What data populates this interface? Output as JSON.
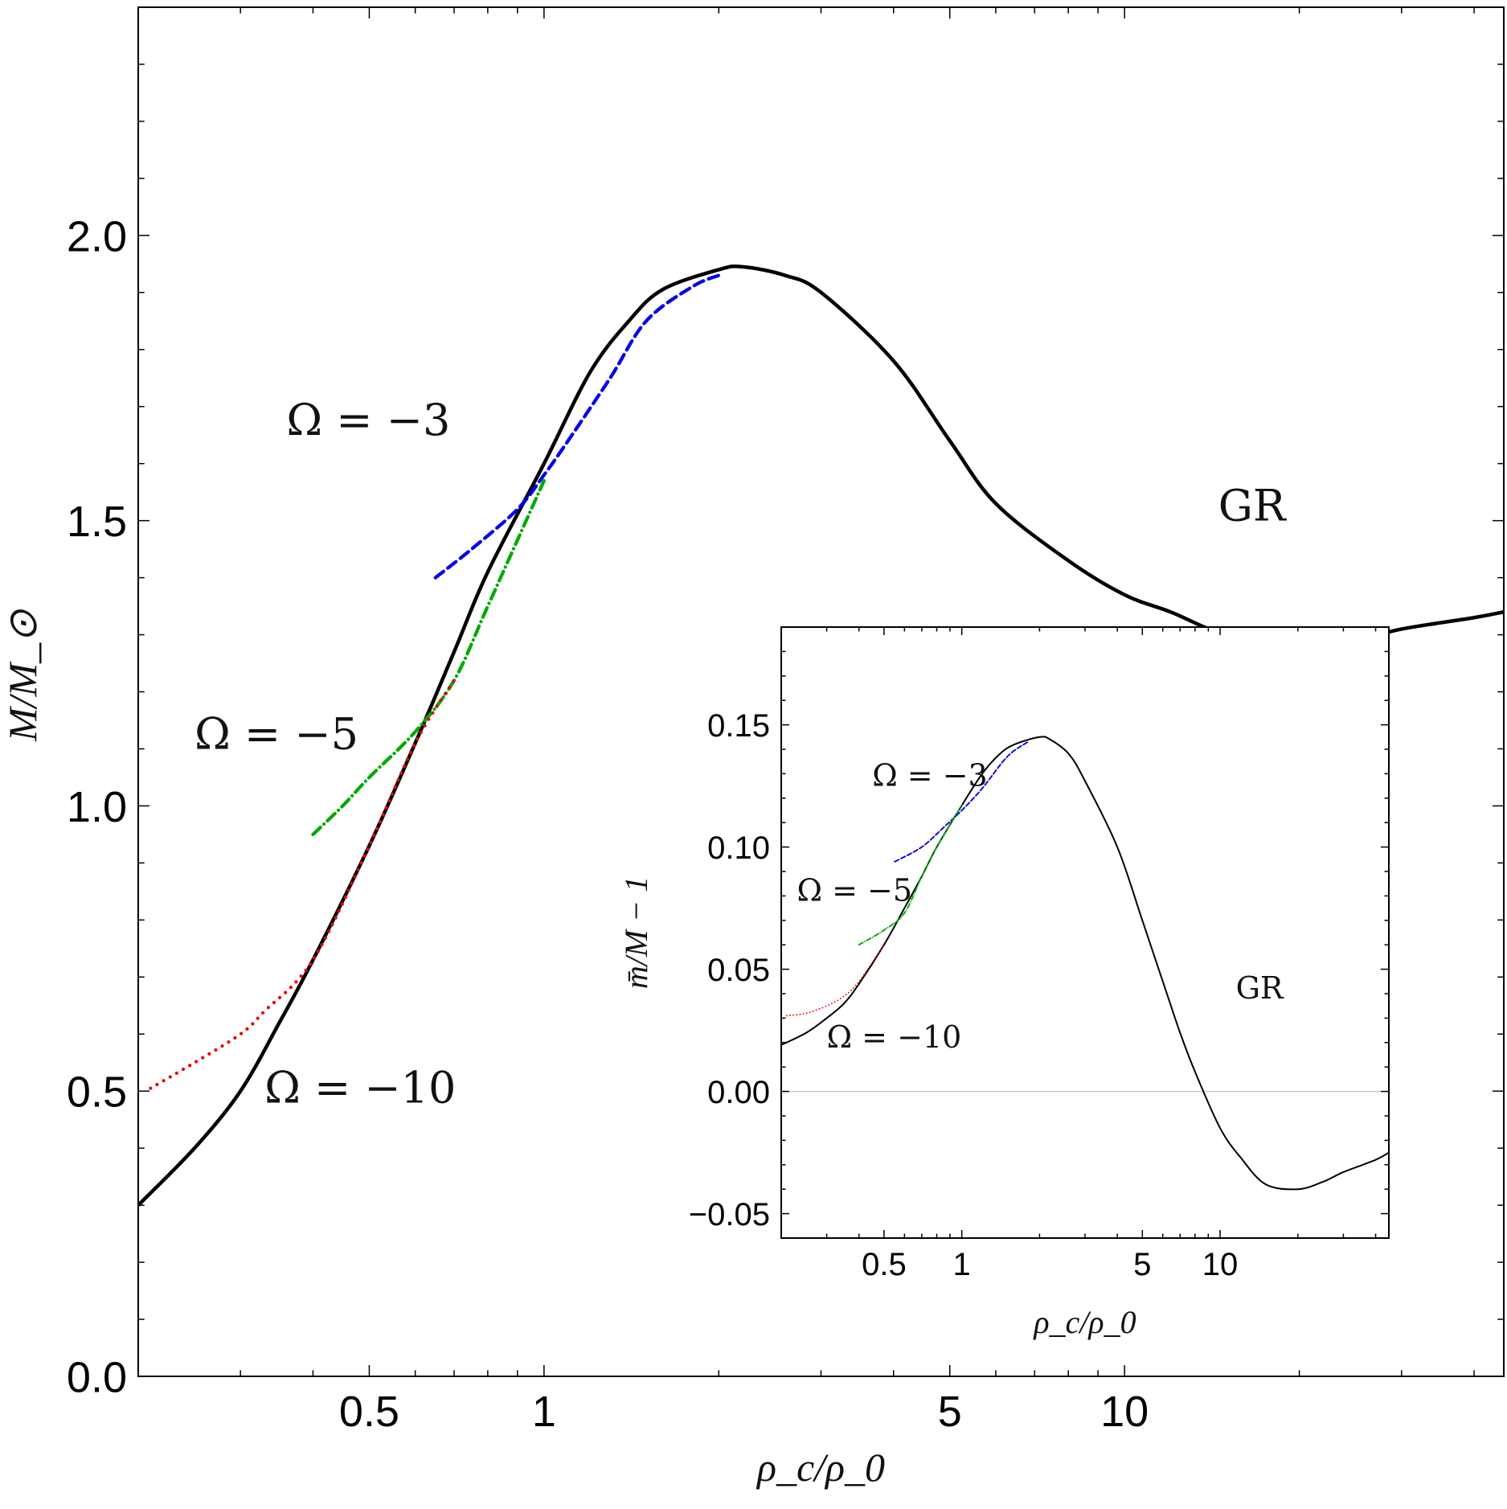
{
  "chart_data": [
    {
      "id": "main",
      "type": "line",
      "title": "",
      "xlabel": "ρ_c/ρ_0",
      "ylabel": "M/M_⊙",
      "xscale": "log",
      "xlim": [
        0.2,
        45
      ],
      "ylim": [
        0,
        2.4
      ],
      "xticks": [
        0.5,
        1,
        5,
        10
      ],
      "xtick_labels": [
        "0.5",
        "1",
        "5",
        "10"
      ],
      "yticks": [
        0,
        0.5,
        1,
        1.5,
        2
      ],
      "ytick_labels": [
        "0.0",
        "0.5",
        "1.0",
        "1.5",
        "2.0"
      ],
      "grid": false,
      "series": [
        {
          "name": "GR",
          "color": "#000000",
          "style": "solid",
          "x": [
            0.2,
            0.25,
            0.3,
            0.35,
            0.4,
            0.5,
            0.6,
            0.7,
            0.8,
            1.0,
            1.2,
            1.4,
            1.6,
            2.0,
            2.2,
            2.6,
            3.0,
            4.0,
            5.0,
            6.0,
            8.0,
            10.0,
            12.0,
            15.0,
            20.0,
            25.0,
            30.0,
            40.0,
            45.0
          ],
          "y": [
            0.3,
            0.4,
            0.5,
            0.62,
            0.73,
            0.93,
            1.11,
            1.27,
            1.41,
            1.6,
            1.76,
            1.85,
            1.905,
            1.94,
            1.945,
            1.93,
            1.9,
            1.78,
            1.64,
            1.53,
            1.43,
            1.37,
            1.34,
            1.3,
            1.285,
            1.29,
            1.31,
            1.33,
            1.34
          ]
        },
        {
          "name": "Ω = −3",
          "color": "#0000ee",
          "style": "dashed",
          "x": [
            0.65,
            0.75,
            0.9,
            1.0,
            1.1,
            1.3,
            1.5,
            1.8,
            2.0
          ],
          "y": [
            1.4,
            1.45,
            1.52,
            1.58,
            1.64,
            1.75,
            1.85,
            1.91,
            1.93
          ]
        },
        {
          "name": "Ω = −5",
          "color": "#00aa00",
          "style": "dashdot",
          "x": [
            0.4,
            0.45,
            0.5,
            0.6,
            0.7,
            0.8,
            1.0
          ],
          "y": [
            0.95,
            1.0,
            1.05,
            1.13,
            1.22,
            1.35,
            1.57
          ]
        },
        {
          "name": "Ω = −10",
          "color": "#ee0000",
          "style": "dotted",
          "x": [
            0.21,
            0.25,
            0.3,
            0.33,
            0.4,
            0.5,
            0.6,
            0.7
          ],
          "y": [
            0.505,
            0.55,
            0.6,
            0.64,
            0.73,
            0.93,
            1.11,
            1.22
          ]
        }
      ],
      "annotations": [
        {
          "text": "Ω = −3",
          "x": 0.36,
          "y": 1.65
        },
        {
          "text": "Ω = −5",
          "x": 0.25,
          "y": 1.1
        },
        {
          "text": "Ω = −10",
          "x": 0.33,
          "y": 0.48
        },
        {
          "text": "GR",
          "x": 14.5,
          "y": 1.5
        }
      ]
    },
    {
      "id": "inset",
      "type": "line",
      "title": "",
      "xlabel": "ρ_c/ρ_0",
      "ylabel": "m̄/M − 1",
      "xscale": "log",
      "xlim": [
        0.2,
        45
      ],
      "ylim": [
        -0.06,
        0.19
      ],
      "xticks": [
        0.5,
        1,
        5,
        10
      ],
      "xtick_labels": [
        "0.5",
        "1",
        "5",
        "10"
      ],
      "yticks": [
        -0.05,
        0,
        0.05,
        0.1,
        0.15
      ],
      "ytick_labels": [
        "−0.05",
        "0.00",
        "0.05",
        "0.10",
        "0.15"
      ],
      "zero_line": true,
      "grid": false,
      "series": [
        {
          "name": "GR",
          "color": "#000000",
          "style": "solid",
          "x": [
            0.2,
            0.25,
            0.3,
            0.35,
            0.4,
            0.5,
            0.6,
            0.7,
            0.8,
            1.0,
            1.2,
            1.4,
            1.6,
            2.0,
            2.2,
            2.6,
            3.0,
            4.0,
            5.0,
            6.0,
            7.0,
            8.0,
            10.0,
            12.0,
            15.0,
            20.0,
            25.0,
            30.0,
            40.0,
            45.0
          ],
          "y": [
            0.019,
            0.024,
            0.03,
            0.036,
            0.044,
            0.06,
            0.075,
            0.088,
            0.1,
            0.117,
            0.13,
            0.138,
            0.142,
            0.145,
            0.144,
            0.138,
            0.127,
            0.1,
            0.07,
            0.045,
            0.024,
            0.008,
            -0.015,
            -0.027,
            -0.038,
            -0.04,
            -0.037,
            -0.033,
            -0.028,
            -0.025
          ]
        },
        {
          "name": "Ω = −3",
          "color": "#0000ee",
          "style": "dashed",
          "x": [
            0.55,
            0.7,
            0.85,
            1.0,
            1.2,
            1.5,
            1.8
          ],
          "y": [
            0.094,
            0.1,
            0.108,
            0.115,
            0.124,
            0.137,
            0.143
          ]
        },
        {
          "name": "Ω = −5",
          "color": "#00aa00",
          "style": "dashdot",
          "x": [
            0.4,
            0.5,
            0.6,
            0.7,
            0.8,
            1.0
          ],
          "y": [
            0.06,
            0.066,
            0.073,
            0.088,
            0.1,
            0.117
          ]
        },
        {
          "name": "Ω = −10",
          "color": "#ee0000",
          "style": "dotted",
          "x": [
            0.21,
            0.25,
            0.3,
            0.35,
            0.4,
            0.5
          ],
          "y": [
            0.031,
            0.032,
            0.035,
            0.039,
            0.045,
            0.06
          ]
        }
      ],
      "annotations": [
        {
          "text": "Ω = −3",
          "x": 0.45,
          "y": 0.125
        },
        {
          "text": "Ω = −5",
          "x": 0.23,
          "y": 0.078
        },
        {
          "text": "Ω = −10",
          "x": 0.3,
          "y": 0.018
        },
        {
          "text": "GR",
          "x": 11.5,
          "y": 0.038
        }
      ]
    }
  ]
}
